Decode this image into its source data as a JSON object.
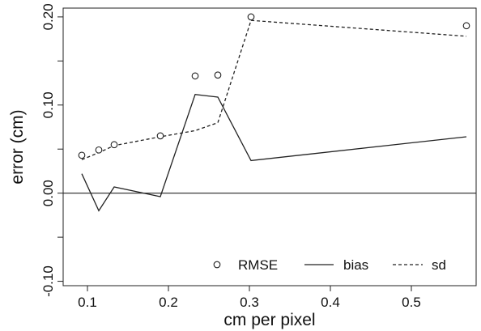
{
  "chart_data": {
    "type": "line",
    "xlabel": "cm per pixel",
    "ylabel": "error (cm)",
    "xlim": [
      0.07,
      0.58
    ],
    "ylim": [
      -0.105,
      0.21
    ],
    "xticks": [
      0.1,
      0.2,
      0.3,
      0.4,
      0.5
    ],
    "xtick_labels": [
      "0.1",
      "0.2",
      "0.3",
      "0.4",
      "0.5"
    ],
    "yticks": [
      -0.1,
      -0.05,
      0.0,
      0.05,
      0.1,
      0.15,
      0.2
    ],
    "ytick_labels": [
      "-0.10",
      "",
      "0.00",
      "",
      "0.10",
      "",
      "0.20"
    ],
    "reference_line_y": 0,
    "grid": false,
    "legend_position": "bottom",
    "series": [
      {
        "name": "RMSE",
        "style": "points-open-circle",
        "x": [
          0.093,
          0.114,
          0.133,
          0.19,
          0.233,
          0.261,
          0.302,
          0.568
        ],
        "y": [
          0.043,
          0.049,
          0.055,
          0.065,
          0.133,
          0.134,
          0.2,
          0.19
        ]
      },
      {
        "name": "bias",
        "style": "solid",
        "x": [
          0.093,
          0.114,
          0.133,
          0.19,
          0.233,
          0.261,
          0.302,
          0.568
        ],
        "y": [
          0.022,
          -0.02,
          0.007,
          -0.004,
          0.112,
          0.109,
          0.037,
          0.064
        ]
      },
      {
        "name": "sd",
        "style": "dashed",
        "x": [
          0.093,
          0.114,
          0.133,
          0.19,
          0.233,
          0.261,
          0.302,
          0.568
        ],
        "y": [
          0.038,
          0.046,
          0.054,
          0.064,
          0.071,
          0.08,
          0.196,
          0.178
        ]
      }
    ]
  }
}
